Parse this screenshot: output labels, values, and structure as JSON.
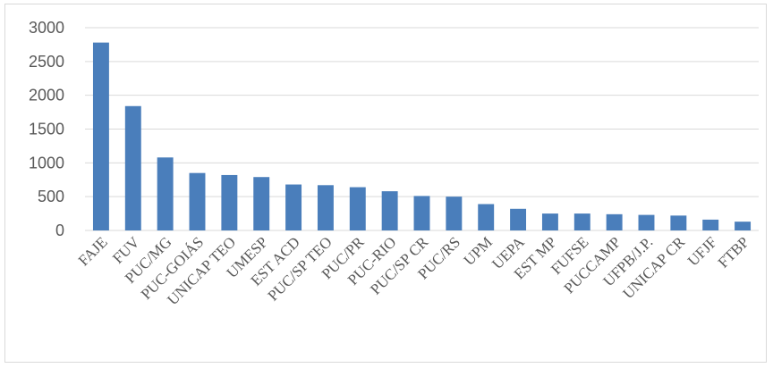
{
  "chart_data": {
    "type": "bar",
    "title": "",
    "xlabel": "",
    "ylabel": "",
    "ylim": [
      0,
      3000
    ],
    "yticks": [
      0,
      500,
      1000,
      1500,
      2000,
      2500,
      3000
    ],
    "grid": true,
    "bar_color": "#4a7ebb",
    "categories": [
      "FAJE",
      "FUV",
      "PUC/MG",
      "PUC-GOIÁS",
      "UNICAP TEO",
      "UMESP",
      "EST ACD",
      "PUC/SP TEO",
      "PUC/PR",
      "PUC-RIO",
      "PUC/SP CR",
      "PUC/RS",
      "UPM",
      "UEPA",
      "EST MP",
      "FUFSE",
      "PUCCAMP",
      "UFPB/J.P.",
      "UNICAP CR",
      "UFJF",
      "FTBP"
    ],
    "values": [
      2780,
      1840,
      1080,
      850,
      820,
      790,
      680,
      670,
      640,
      580,
      510,
      500,
      390,
      320,
      250,
      250,
      240,
      230,
      220,
      160,
      130
    ]
  }
}
